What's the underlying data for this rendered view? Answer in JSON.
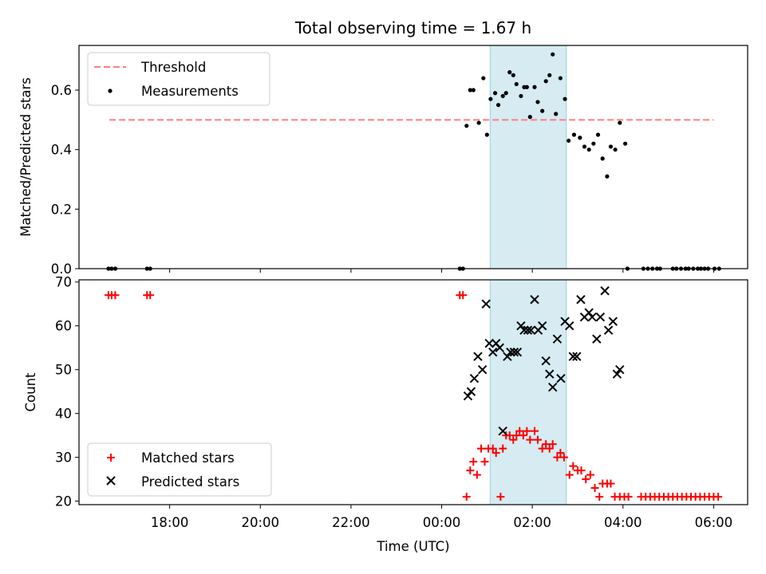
{
  "chart_data": [
    {
      "type": "scatter",
      "title": "Total observing time = 1.67 h",
      "ylabel": "Matched/Predicted stars",
      "xlabel": "",
      "xlim": [
        16.0,
        30.75
      ],
      "ylim": [
        0.0,
        0.75
      ],
      "yticks": [
        0.0,
        0.2,
        0.4,
        0.6
      ],
      "ytick_labels": [
        "0.0",
        "0.2",
        "0.4",
        "0.6"
      ],
      "highlight_span": {
        "x_start": 25.07,
        "x_end": 26.75,
        "color": "#add8e6"
      },
      "threshold": {
        "name": "Threshold",
        "y": 0.5,
        "x_start": 16.67,
        "x_end": 30.0,
        "color": "#ff7f7f"
      },
      "series": [
        {
          "name": "Measurements",
          "color": "#000000",
          "x": [
            16.65,
            16.72,
            16.8,
            17.5,
            17.57,
            24.4,
            24.47,
            24.55,
            24.63,
            24.7,
            24.82,
            24.92,
            25.0,
            25.08,
            25.18,
            25.25,
            25.35,
            25.42,
            25.5,
            25.58,
            25.65,
            25.75,
            25.82,
            25.88,
            25.95,
            26.05,
            26.12,
            26.22,
            26.3,
            26.38,
            26.45,
            26.52,
            26.62,
            26.72,
            26.8,
            26.92,
            27.05,
            27.15,
            27.25,
            27.35,
            27.45,
            27.55,
            27.65,
            27.73,
            27.83,
            27.93,
            28.05,
            28.1,
            28.45,
            28.55,
            28.65,
            28.75,
            28.82,
            29.1,
            29.18,
            29.28,
            29.38,
            29.45,
            29.55,
            29.65,
            29.72,
            29.8,
            29.88,
            30.02,
            30.12
          ],
          "y": [
            0.0,
            0.0,
            0.0,
            0.0,
            0.0,
            0.0,
            0.0,
            0.48,
            0.6,
            0.6,
            0.49,
            0.64,
            0.45,
            0.57,
            0.59,
            0.55,
            0.58,
            0.59,
            0.66,
            0.65,
            0.62,
            0.58,
            0.61,
            0.61,
            0.51,
            0.61,
            0.56,
            0.53,
            0.63,
            0.65,
            0.72,
            0.52,
            0.64,
            0.57,
            0.43,
            0.45,
            0.44,
            0.41,
            0.4,
            0.42,
            0.45,
            0.37,
            0.31,
            0.41,
            0.4,
            0.49,
            0.42,
            0.0,
            0.0,
            0.0,
            0.0,
            0.0,
            0.0,
            0.0,
            0.0,
            0.0,
            0.0,
            0.0,
            0.0,
            0.0,
            0.0,
            0.0,
            0.0,
            0.0,
            0.0
          ]
        }
      ],
      "legend": {
        "placement": "upper-left",
        "entries": [
          "Threshold",
          "Measurements"
        ]
      },
      "grid": false
    },
    {
      "type": "scatter",
      "title": "",
      "ylabel": "Count",
      "xlabel": "Time (UTC)",
      "xlim": [
        16.0,
        30.75
      ],
      "ylim": [
        19.2,
        70.5
      ],
      "yticks": [
        20,
        30,
        40,
        50,
        60,
        70
      ],
      "ytick_labels": [
        "20",
        "30",
        "40",
        "50",
        "60",
        "70"
      ],
      "xticks": [
        18,
        20,
        22,
        24,
        26,
        28,
        30
      ],
      "xtick_labels": [
        "18:00",
        "20:00",
        "22:00",
        "00:00",
        "02:00",
        "04:00",
        "06:00"
      ],
      "highlight_span": {
        "x_start": 25.07,
        "x_end": 26.75,
        "color": "#add8e6"
      },
      "series": [
        {
          "name": "Matched stars",
          "marker": "+",
          "color": "#ff0000",
          "x": [
            16.65,
            16.72,
            16.8,
            17.5,
            17.57,
            24.4,
            24.47,
            24.55,
            24.63,
            24.7,
            24.78,
            24.87,
            24.95,
            25.03,
            25.13,
            25.2,
            25.3,
            25.35,
            25.42,
            25.5,
            25.58,
            25.65,
            25.72,
            25.8,
            25.88,
            25.95,
            26.05,
            26.12,
            26.22,
            26.3,
            26.38,
            26.45,
            26.55,
            26.62,
            26.7,
            26.82,
            26.9,
            27.0,
            27.08,
            27.18,
            27.28,
            27.38,
            27.48,
            27.55,
            27.65,
            27.73,
            27.82,
            27.93,
            28.03,
            28.12,
            28.4,
            28.5,
            28.6,
            28.7,
            28.8,
            28.9,
            29.0,
            29.1,
            29.2,
            29.3,
            29.4,
            29.5,
            29.6,
            29.7,
            29.8,
            29.9,
            30.0,
            30.1
          ],
          "y": [
            67,
            67,
            67,
            67,
            67,
            67,
            67,
            21,
            27,
            29,
            26,
            32,
            29,
            32,
            32,
            31,
            21,
            32,
            35,
            35,
            34,
            35,
            36,
            35,
            36,
            34,
            36,
            34,
            32,
            33,
            32,
            33,
            30,
            31,
            30,
            26,
            28,
            27,
            27,
            25,
            26,
            23,
            21,
            24,
            24,
            24,
            21,
            21,
            21,
            21,
            21,
            21,
            21,
            21,
            21,
            21,
            21,
            21,
            21,
            21,
            21,
            21,
            21,
            21,
            21,
            21,
            21,
            21
          ]
        },
        {
          "name": "Predicted stars",
          "marker": "x",
          "color": "#000000",
          "x": [
            24.58,
            24.65,
            24.72,
            24.8,
            24.9,
            24.98,
            25.05,
            25.13,
            25.2,
            25.28,
            25.35,
            25.45,
            25.52,
            25.6,
            25.67,
            25.75,
            25.82,
            25.9,
            25.97,
            26.05,
            26.13,
            26.22,
            26.3,
            26.38,
            26.45,
            26.55,
            26.63,
            26.72,
            26.82,
            26.9,
            26.98,
            27.07,
            27.15,
            27.25,
            27.32,
            27.42,
            27.5,
            27.6,
            27.68,
            27.78,
            27.87,
            27.93
          ],
          "y": [
            44,
            45,
            48,
            53,
            50,
            65,
            56,
            54,
            56,
            55,
            36,
            53,
            54,
            54,
            54,
            60,
            59,
            59,
            59,
            66,
            59,
            60,
            52,
            49,
            46,
            57,
            48,
            61,
            60,
            53,
            53,
            66,
            62,
            63,
            62,
            57,
            62,
            68,
            59,
            61,
            49,
            50
          ]
        }
      ],
      "legend": {
        "placement": "lower-left",
        "entries": [
          "Matched stars",
          "Predicted stars"
        ]
      },
      "grid": false
    }
  ]
}
